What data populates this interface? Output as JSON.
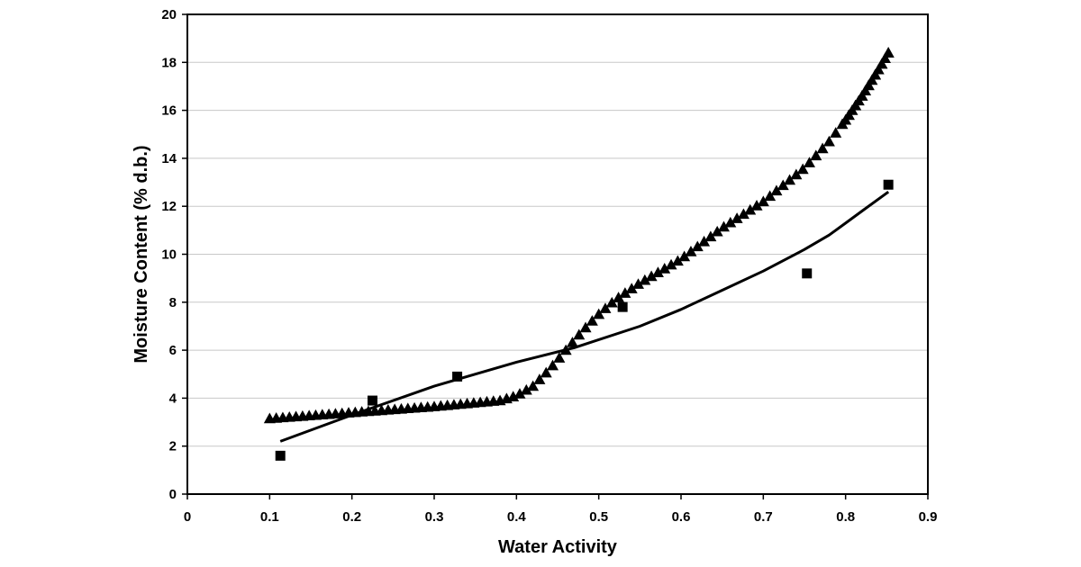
{
  "chart_data": {
    "type": "scatter",
    "title": "",
    "xlabel": "Water Activity",
    "ylabel": "Moisture Content (% d.b.)",
    "xlim": [
      0,
      0.9
    ],
    "ylim": [
      0,
      20
    ],
    "x_ticks": [
      "0",
      "0.1",
      "0.2",
      "0.3",
      "0.4",
      "0.5",
      "0.6",
      "0.7",
      "0.8",
      "0.9"
    ],
    "y_ticks": [
      "0",
      "2",
      "4",
      "6",
      "8",
      "10",
      "12",
      "14",
      "16",
      "18",
      "20"
    ],
    "grid": "horizontal",
    "legend": "none",
    "series": [
      {
        "marker": "square",
        "color": "#000000",
        "x": [
          0.113,
          0.225,
          0.328,
          0.529,
          0.753,
          0.852
        ],
        "y": [
          1.6,
          3.9,
          4.9,
          7.8,
          9.2,
          12.9
        ]
      },
      {
        "marker": "line",
        "color": "#000000",
        "x": [
          0.113,
          0.2,
          0.3,
          0.4,
          0.47,
          0.55,
          0.6,
          0.65,
          0.7,
          0.75,
          0.78,
          0.8,
          0.82,
          0.852
        ],
        "y": [
          2.2,
          3.3,
          4.5,
          5.5,
          6.1,
          7.0,
          7.7,
          8.5,
          9.3,
          10.2,
          10.8,
          11.3,
          11.8,
          12.6
        ]
      },
      {
        "marker": "triangle",
        "color": "#000000",
        "x": [
          0.1,
          0.3,
          0.38,
          0.4,
          0.42,
          0.44,
          0.46,
          0.48,
          0.5,
          0.52,
          0.55,
          0.6,
          0.65,
          0.7,
          0.75,
          0.78,
          0.8,
          0.82,
          0.84,
          0.852
        ],
        "y": [
          3.15,
          3.65,
          3.9,
          4.1,
          4.5,
          5.2,
          6.0,
          6.8,
          7.5,
          8.1,
          8.8,
          9.8,
          11.1,
          12.2,
          13.6,
          14.7,
          15.6,
          16.6,
          17.7,
          18.4
        ],
        "spacing": 0.008
      }
    ]
  }
}
